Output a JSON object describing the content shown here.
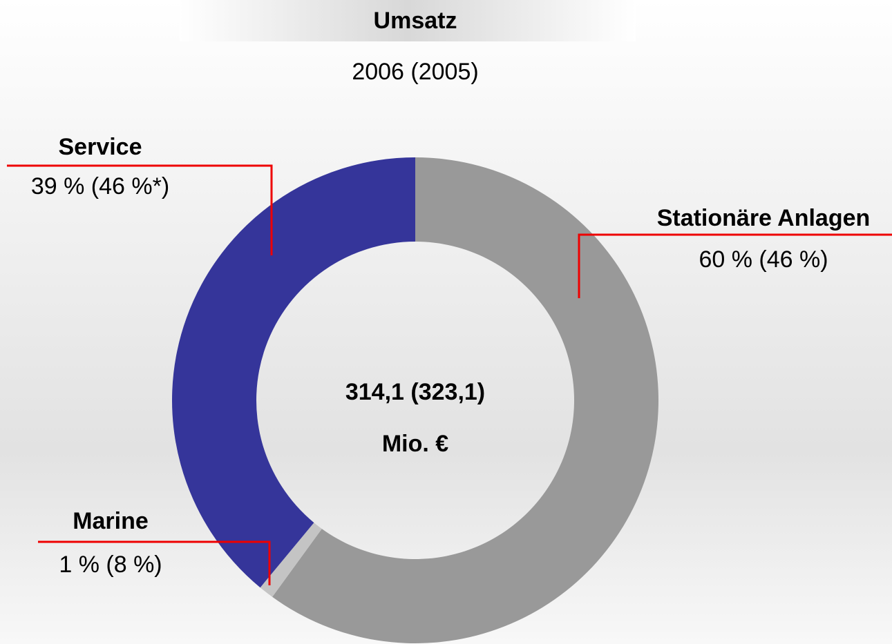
{
  "chart_data": {
    "type": "donut",
    "title": "Umsatz",
    "subtitle": "2006 (2005)",
    "center_text": [
      "314,1 (323,1)",
      "Mio. €"
    ],
    "categories": [
      "Stationäre Anlagen",
      "Marine",
      "Service"
    ],
    "values": [
      60,
      1,
      39
    ],
    "value_labels": [
      "60 % (46 %)",
      "1 % (8 %)",
      "39 % (46 %*)"
    ],
    "colors": [
      "#999999",
      "#c4c4c4",
      "#35359a"
    ]
  }
}
